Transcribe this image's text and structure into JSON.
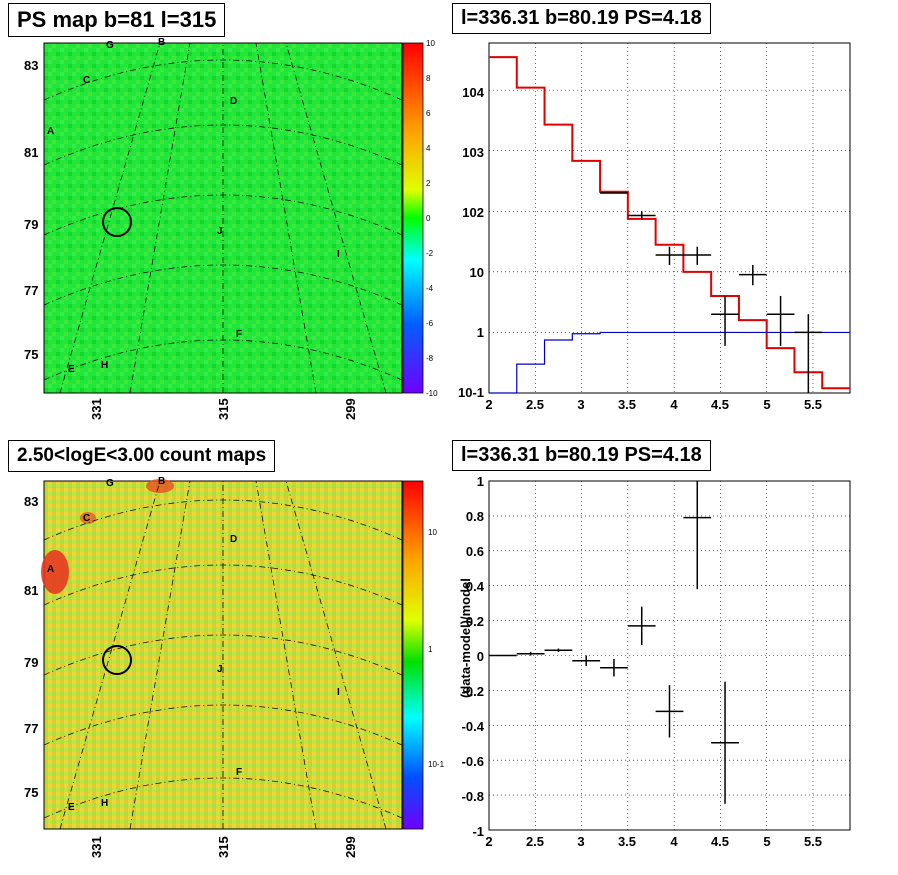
{
  "panels": {
    "tl_title": "PS map b=81 l=315",
    "tr_title": "l=336.31 b=80.19 PS=4.18",
    "bl_title": "2.50<logE<3.00 count maps",
    "br_title": "l=336.31 b=80.19 PS=4.18"
  },
  "maps": {
    "lat_ticks": [
      "83",
      "81",
      "79",
      "77",
      "75"
    ],
    "lon_ticks": [
      "331",
      "315",
      "299"
    ],
    "markers": [
      "G",
      "B",
      "C",
      "D",
      "A",
      "J",
      "I",
      "F",
      "H",
      "E"
    ],
    "colorbar_top": [
      "10",
      "8",
      "6",
      "4",
      "2",
      "0",
      "-2",
      "-4",
      "-6",
      "-8",
      "-10"
    ],
    "colorbar_bottom": [
      "10",
      "1",
      "10-1"
    ]
  },
  "chart_data": [
    {
      "type": "line",
      "panel": "top-right",
      "title": "l=336.31 b=80.19 PS=4.18",
      "xlabel": "",
      "ylabel": "",
      "log_y": true,
      "xlim": [
        2,
        5.9
      ],
      "ylim": [
        0.1,
        60000
      ],
      "x_ticks": [
        "2",
        "2.5",
        "3",
        "3.5",
        "4",
        "4.5",
        "5",
        "5.5"
      ],
      "y_ticks": [
        "10-1",
        "1",
        "10",
        "102",
        "103",
        "104"
      ],
      "grid": true,
      "series": [
        {
          "color": "#e00000",
          "style": "step",
          "edges": [
            2.0,
            2.3,
            2.6,
            2.9,
            3.2,
            3.5,
            3.8,
            4.1,
            4.4,
            4.7,
            5.0,
            5.3,
            5.6,
            5.9
          ],
          "values": [
            35000,
            11000,
            2700,
            680,
            210,
            75,
            28,
            10,
            4.0,
            1.6,
            0.55,
            0.22,
            0.12
          ]
        },
        {
          "color": "#0000c8",
          "style": "step",
          "edges": [
            2.0,
            2.3,
            2.6,
            2.9,
            3.2,
            3.5,
            3.8,
            4.1,
            4.4,
            4.7,
            5.0,
            5.3,
            5.6,
            5.9
          ],
          "values": [
            0.1,
            0.3,
            0.75,
            0.95,
            1.0,
            1.0,
            1.0,
            1.0,
            1.0,
            1.0,
            1.0,
            1.0,
            1.0
          ]
        },
        {
          "color": "#000000",
          "style": "errorbar",
          "points": [
            {
              "x": 3.35,
              "y": 200,
              "xerr": 0.15,
              "ylo": 200,
              "yhi": 200
            },
            {
              "x": 3.65,
              "y": 85,
              "xerr": 0.15,
              "ylo": 72,
              "yhi": 100
            },
            {
              "x": 3.95,
              "y": 19,
              "xerr": 0.15,
              "ylo": 13,
              "yhi": 26
            },
            {
              "x": 4.25,
              "y": 19,
              "xerr": 0.15,
              "ylo": 13,
              "yhi": 26
            },
            {
              "x": 4.55,
              "y": 2,
              "xerr": 0.15,
              "ylo": 0.6,
              "yhi": 4
            },
            {
              "x": 4.85,
              "y": 9,
              "xerr": 0.15,
              "ylo": 6,
              "yhi": 13
            },
            {
              "x": 5.15,
              "y": 2,
              "xerr": 0.15,
              "ylo": 0.6,
              "yhi": 4
            },
            {
              "x": 5.45,
              "y": 1,
              "xerr": 0.15,
              "ylo": 0.1,
              "yhi": 2
            }
          ]
        }
      ]
    },
    {
      "type": "scatter",
      "panel": "bottom-right",
      "title": "l=336.31 b=80.19 PS=4.18",
      "xlabel": "",
      "ylabel": "(data-model)/model",
      "xlim": [
        2,
        5.9
      ],
      "ylim": [
        -1,
        1
      ],
      "x_ticks": [
        "2",
        "2.5",
        "3",
        "3.5",
        "4",
        "4.5",
        "5",
        "5.5"
      ],
      "y_ticks": [
        "1",
        "0.8",
        "0.6",
        "0.4",
        "0.2",
        "0",
        "-0.2",
        "-0.4",
        "-0.6",
        "-0.8",
        "-1"
      ],
      "grid": true,
      "series": [
        {
          "color": "#000000",
          "style": "errorbar",
          "points": [
            {
              "x": 2.15,
              "y": 0.0,
              "xerr": 0.15,
              "ylo": 0.0,
              "yhi": 0.0
            },
            {
              "x": 2.45,
              "y": 0.01,
              "xerr": 0.15,
              "ylo": 0.0,
              "yhi": 0.02
            },
            {
              "x": 2.75,
              "y": 0.03,
              "xerr": 0.15,
              "ylo": 0.02,
              "yhi": 0.04
            },
            {
              "x": 3.05,
              "y": -0.03,
              "xerr": 0.15,
              "ylo": -0.06,
              "yhi": 0.0
            },
            {
              "x": 3.35,
              "y": -0.07,
              "xerr": 0.15,
              "ylo": -0.12,
              "yhi": -0.02
            },
            {
              "x": 3.65,
              "y": 0.17,
              "xerr": 0.15,
              "ylo": 0.06,
              "yhi": 0.28
            },
            {
              "x": 3.95,
              "y": -0.32,
              "xerr": 0.15,
              "ylo": -0.47,
              "yhi": -0.17
            },
            {
              "x": 4.25,
              "y": 0.79,
              "xerr": 0.15,
              "ylo": 0.38,
              "yhi": 1.0
            },
            {
              "x": 4.55,
              "y": -0.5,
              "xerr": 0.15,
              "ylo": -0.85,
              "yhi": -0.15
            }
          ]
        }
      ]
    }
  ]
}
